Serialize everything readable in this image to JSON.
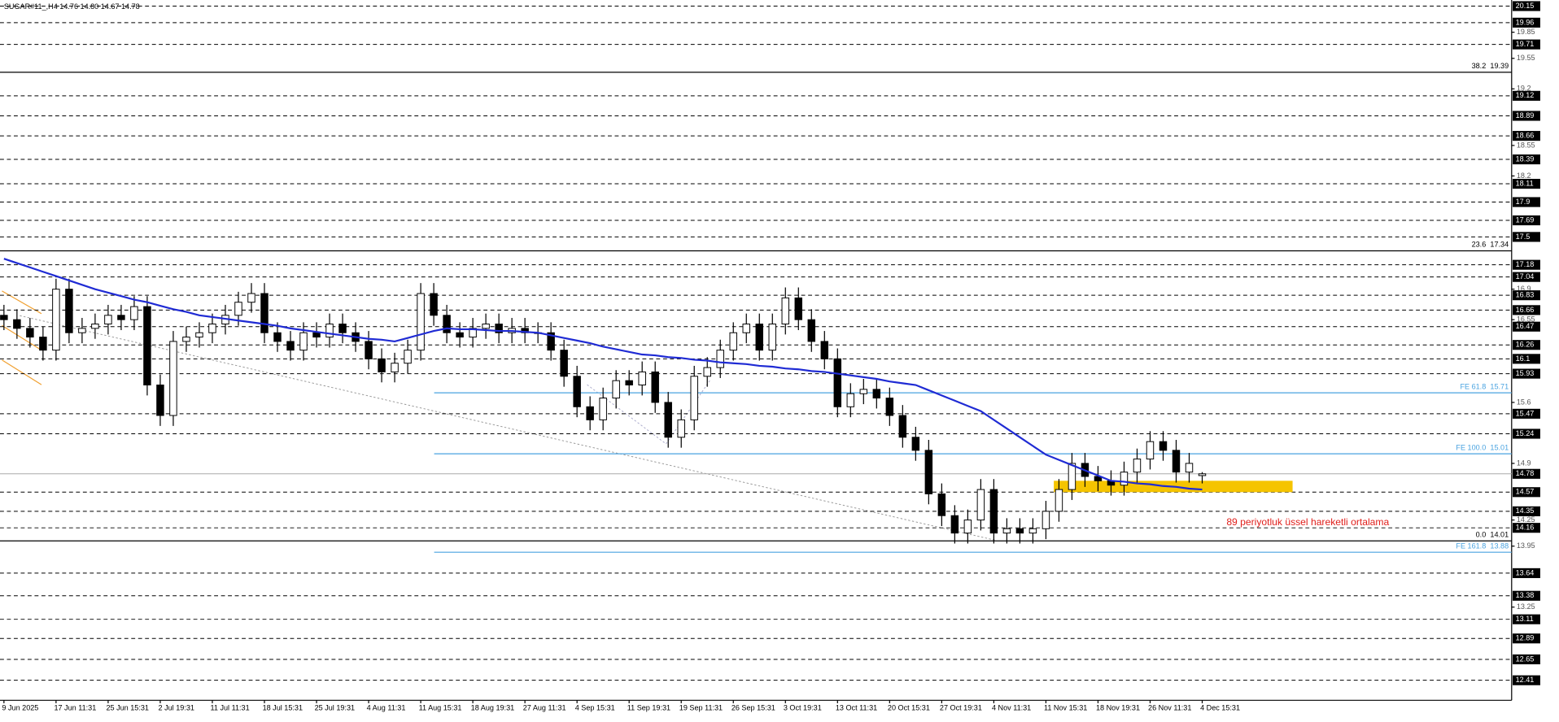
{
  "chart_data": {
    "type": "candlestick",
    "title": "SUGAR#11_,H4  14.76 14.80 14.67 14.78",
    "annotation": "89 periyotluk üssel hareketli ortalama",
    "ylim": [
      12.18,
      20.22
    ],
    "yticks": [
      19.85,
      19.55,
      19.2,
      18.55,
      18.2,
      16.9,
      16.55,
      15.6,
      14.9,
      14.25,
      13.95,
      13.25
    ],
    "price_levels": [
      20.15,
      19.96,
      19.71,
      19.12,
      18.89,
      18.66,
      18.39,
      18.11,
      17.9,
      17.69,
      17.5,
      17.18,
      17.04,
      16.83,
      16.66,
      16.47,
      16.26,
      16.1,
      15.93,
      15.47,
      15.24,
      14.57,
      14.35,
      14.16,
      13.64,
      13.38,
      13.11,
      12.89,
      12.65,
      12.41
    ],
    "current_price": 14.78,
    "fib_levels": [
      {
        "ratio": "38.2",
        "value": 19.39
      },
      {
        "ratio": "23.6",
        "value": 17.34
      },
      {
        "ratio": "0.0",
        "value": 14.01
      }
    ],
    "fe_levels": [
      {
        "name": "FE 61.8",
        "value": 15.71
      },
      {
        "name": "FE 100.0",
        "value": 15.01
      },
      {
        "name": "FE 161.8",
        "value": 13.88
      }
    ],
    "zone": [
      14.57,
      14.7
    ],
    "up_color": "#000000",
    "down_color": "#000000",
    "ema_color": "#1f2bd4",
    "zone_color": "#f5c400",
    "fe_color": "#4aa3e0",
    "categories": [
      "9 Jun 2025",
      null,
      null,
      null,
      "17 Jun 11:31",
      null,
      null,
      null,
      "25 Jun 15:31",
      null,
      null,
      null,
      "2 Jul 19:31",
      null,
      null,
      null,
      "11 Jul 11:31",
      null,
      null,
      null,
      "18 Jul 15:31",
      null,
      null,
      null,
      "25 Jul 19:31",
      null,
      null,
      null,
      "4 Aug 11:31",
      null,
      null,
      null,
      "11 Aug 15:31",
      null,
      null,
      null,
      "18 Aug 19:31",
      null,
      null,
      null,
      "27 Aug 11:31",
      null,
      null,
      null,
      "4 Sep 15:31",
      null,
      null,
      null,
      "11 Sep 19:31",
      null,
      null,
      null,
      "19 Sep 11:31",
      null,
      null,
      null,
      "26 Sep 15:31",
      null,
      null,
      null,
      "3 Oct 19:31",
      null,
      null,
      null,
      "13 Oct 11:31",
      null,
      null,
      null,
      "20 Oct 15:31",
      null,
      null,
      null,
      "27 Oct 19:31",
      null,
      null,
      null,
      "4 Nov 11:31",
      null,
      null,
      null,
      "11 Nov 15:31",
      null,
      null,
      null,
      "18 Nov 19:31",
      null,
      null,
      null,
      "26 Nov 11:31",
      null,
      null,
      null,
      "4 Dec 15:31"
    ],
    "ohlc": [
      [
        16.6,
        16.72,
        16.43,
        16.55
      ],
      [
        16.55,
        16.67,
        16.33,
        16.45
      ],
      [
        16.45,
        16.57,
        16.23,
        16.35
      ],
      [
        16.35,
        16.47,
        16.08,
        16.2
      ],
      [
        16.2,
        17.02,
        16.08,
        16.9
      ],
      [
        16.9,
        17.02,
        16.28,
        16.4
      ],
      [
        16.4,
        16.57,
        16.28,
        16.45
      ],
      [
        16.45,
        16.62,
        16.33,
        16.5
      ],
      [
        16.5,
        16.72,
        16.38,
        16.6
      ],
      [
        16.6,
        16.72,
        16.43,
        16.55
      ],
      [
        16.55,
        16.82,
        16.43,
        16.7
      ],
      [
        16.7,
        16.82,
        15.68,
        15.8
      ],
      [
        15.8,
        15.92,
        15.33,
        15.45
      ],
      [
        15.45,
        16.42,
        15.33,
        16.3
      ],
      [
        16.3,
        16.47,
        16.18,
        16.35
      ],
      [
        16.35,
        16.52,
        16.23,
        16.4
      ],
      [
        16.4,
        16.62,
        16.28,
        16.5
      ],
      [
        16.5,
        16.72,
        16.38,
        16.6
      ],
      [
        16.6,
        16.87,
        16.48,
        16.75
      ],
      [
        16.75,
        16.97,
        16.63,
        16.85
      ],
      [
        16.85,
        16.97,
        16.28,
        16.4
      ],
      [
        16.4,
        16.52,
        16.18,
        16.3
      ],
      [
        16.3,
        16.42,
        16.08,
        16.2
      ],
      [
        16.2,
        16.52,
        16.08,
        16.4
      ],
      [
        16.4,
        16.52,
        16.23,
        16.35
      ],
      [
        16.35,
        16.62,
        16.23,
        16.5
      ],
      [
        16.5,
        16.62,
        16.28,
        16.4
      ],
      [
        16.4,
        16.52,
        16.18,
        16.3
      ],
      [
        16.3,
        16.42,
        15.98,
        16.1
      ],
      [
        16.1,
        16.22,
        15.83,
        15.95
      ],
      [
        15.95,
        16.17,
        15.83,
        16.05
      ],
      [
        16.05,
        16.32,
        15.93,
        16.2
      ],
      [
        16.2,
        16.97,
        16.08,
        16.85
      ],
      [
        16.85,
        16.97,
        16.48,
        16.6
      ],
      [
        16.6,
        16.72,
        16.28,
        16.4
      ],
      [
        16.4,
        16.52,
        16.23,
        16.35
      ],
      [
        16.35,
        16.57,
        16.23,
        16.45
      ],
      [
        16.45,
        16.62,
        16.33,
        16.5
      ],
      [
        16.5,
        16.62,
        16.28,
        16.4
      ],
      [
        16.4,
        16.57,
        16.28,
        16.45
      ],
      [
        16.45,
        16.57,
        16.28,
        16.4
      ],
      [
        16.4,
        16.52,
        16.28,
        16.4
      ],
      [
        16.4,
        16.52,
        16.08,
        16.2
      ],
      [
        16.2,
        16.32,
        15.78,
        15.9
      ],
      [
        15.9,
        16.02,
        15.43,
        15.55
      ],
      [
        15.55,
        15.67,
        15.28,
        15.4
      ],
      [
        15.4,
        15.77,
        15.28,
        15.65
      ],
      [
        15.65,
        15.97,
        15.53,
        15.85
      ],
      [
        15.85,
        15.97,
        15.68,
        15.8
      ],
      [
        15.8,
        16.07,
        15.68,
        15.95
      ],
      [
        15.95,
        16.07,
        15.48,
        15.6
      ],
      [
        15.6,
        15.72,
        15.08,
        15.2
      ],
      [
        15.2,
        15.52,
        15.08,
        15.4
      ],
      [
        15.4,
        16.02,
        15.28,
        15.9
      ],
      [
        15.9,
        16.12,
        15.78,
        16.0
      ],
      [
        16.0,
        16.32,
        15.88,
        16.2
      ],
      [
        16.2,
        16.52,
        16.08,
        16.4
      ],
      [
        16.4,
        16.62,
        16.28,
        16.5
      ],
      [
        16.5,
        16.62,
        16.08,
        16.2
      ],
      [
        16.2,
        16.62,
        16.08,
        16.5
      ],
      [
        16.5,
        16.92,
        16.38,
        16.8
      ],
      [
        16.8,
        16.92,
        16.43,
        16.55
      ],
      [
        16.55,
        16.67,
        16.18,
        16.3
      ],
      [
        16.3,
        16.42,
        15.98,
        16.1
      ],
      [
        16.1,
        16.22,
        15.43,
        15.55
      ],
      [
        15.55,
        15.82,
        15.43,
        15.7
      ],
      [
        15.7,
        15.87,
        15.58,
        15.75
      ],
      [
        15.75,
        15.87,
        15.53,
        15.65
      ],
      [
        15.65,
        15.77,
        15.33,
        15.45
      ],
      [
        15.45,
        15.57,
        15.08,
        15.2
      ],
      [
        15.2,
        15.32,
        14.93,
        15.05
      ],
      [
        15.05,
        15.17,
        14.43,
        14.55
      ],
      [
        14.55,
        14.67,
        14.18,
        14.3
      ],
      [
        14.3,
        14.42,
        13.98,
        14.1
      ],
      [
        14.1,
        14.37,
        13.98,
        14.25
      ],
      [
        14.25,
        14.72,
        14.13,
        14.6
      ],
      [
        14.6,
        14.72,
        13.98,
        14.1
      ],
      [
        14.1,
        14.27,
        13.98,
        14.15
      ],
      [
        14.15,
        14.27,
        13.98,
        14.1
      ],
      [
        14.1,
        14.27,
        13.98,
        14.15
      ],
      [
        14.15,
        14.47,
        14.03,
        14.35
      ],
      [
        14.35,
        14.72,
        14.23,
        14.6
      ],
      [
        14.6,
        15.02,
        14.48,
        14.9
      ],
      [
        14.9,
        15.02,
        14.63,
        14.75
      ],
      [
        14.75,
        14.87,
        14.58,
        14.7
      ],
      [
        14.7,
        14.82,
        14.53,
        14.65
      ],
      [
        14.65,
        14.92,
        14.53,
        14.8
      ],
      [
        14.8,
        15.07,
        14.68,
        14.95
      ],
      [
        14.95,
        15.27,
        14.83,
        15.15
      ],
      [
        15.15,
        15.27,
        14.93,
        15.05
      ],
      [
        15.05,
        15.17,
        14.68,
        14.8
      ],
      [
        14.8,
        15.02,
        14.68,
        14.9
      ],
      [
        14.76,
        14.8,
        14.67,
        14.78
      ]
    ],
    "ema": [
      17.25,
      17.2,
      17.15,
      17.1,
      17.05,
      17.0,
      16.95,
      16.9,
      16.86,
      16.82,
      16.78,
      16.75,
      16.71,
      16.67,
      16.64,
      16.6,
      16.58,
      16.56,
      16.54,
      16.52,
      16.5,
      16.48,
      16.45,
      16.43,
      16.41,
      16.39,
      16.37,
      16.35,
      16.33,
      16.32,
      16.3,
      16.34,
      16.38,
      16.42,
      16.45,
      16.44,
      16.44,
      16.43,
      16.42,
      16.42,
      16.41,
      16.4,
      16.37,
      16.34,
      16.31,
      16.28,
      16.24,
      16.21,
      16.18,
      16.15,
      16.14,
      16.12,
      16.11,
      16.09,
      16.08,
      16.06,
      16.05,
      16.04,
      16.02,
      16.01,
      15.99,
      15.98,
      15.96,
      15.95,
      15.93,
      15.91,
      15.89,
      15.87,
      15.84,
      15.82,
      15.8,
      15.74,
      15.68,
      15.62,
      15.56,
      15.5,
      15.4,
      15.3,
      15.2,
      15.1,
      15.0,
      14.94,
      14.88,
      14.82,
      14.76,
      14.7,
      14.69,
      14.67,
      14.66,
      14.64,
      14.63,
      14.61,
      14.6
    ]
  }
}
